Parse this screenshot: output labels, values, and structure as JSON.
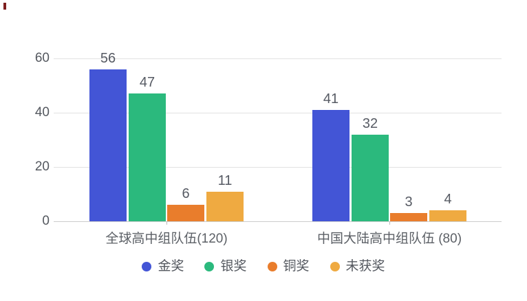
{
  "chart_data": {
    "type": "bar",
    "title": "",
    "categories": [
      "全球高中组队伍(120)",
      "中国大陆高中组队伍 (80)"
    ],
    "series": [
      {
        "key": "gold",
        "name": "金奖",
        "color": "#4355d6",
        "values": [
          56,
          41
        ]
      },
      {
        "key": "silver",
        "name": "银奖",
        "color": "#2bb97d",
        "values": [
          47,
          32
        ]
      },
      {
        "key": "bronze",
        "name": "铜奖",
        "color": "#e97d2c",
        "values": [
          6,
          3
        ]
      },
      {
        "key": "no-award",
        "name": "未获奖",
        "color": "#efaa41",
        "values": [
          11,
          4
        ]
      }
    ],
    "ylim": [
      0,
      60
    ],
    "yticks": [
      0,
      20,
      40,
      60
    ],
    "grid": true,
    "legend_position": "bottom",
    "colors": {
      "gridline": "#e2e2e2",
      "axis_line": "#cccccc",
      "text": "#565a63"
    }
  }
}
